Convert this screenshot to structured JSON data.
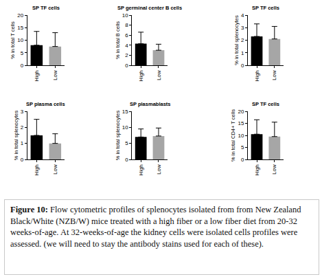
{
  "chart_data": [
    {
      "type": "bar",
      "title": "SP TF cells",
      "y_label": "% in total T cells",
      "categories": [
        "High",
        "Low"
      ],
      "values": [
        8,
        7.5
      ],
      "errors": [
        5.5,
        5.5
      ],
      "colors": [
        "#000000",
        "#a6a6a6"
      ],
      "ylim": [
        0,
        20
      ],
      "yticks": [
        0,
        5,
        10,
        15,
        20
      ]
    },
    {
      "type": "bar",
      "title": "SP germinal center B cells",
      "y_label": "% in total B cells",
      "categories": [
        "High",
        "Low"
      ],
      "values": [
        4.3,
        3
      ],
      "errors": [
        2.3,
        1.2
      ],
      "colors": [
        "#000000",
        "#a6a6a6"
      ],
      "ylim": [
        0,
        10
      ],
      "yticks": [
        0,
        2,
        4,
        6,
        8,
        10
      ]
    },
    {
      "type": "bar",
      "title": "SP TF cells",
      "y_label": "% in total splenocytes",
      "categories": [
        "High",
        "Low"
      ],
      "values": [
        2.3,
        2.1
      ],
      "errors": [
        1.0,
        1.0
      ],
      "colors": [
        "#000000",
        "#a6a6a6"
      ],
      "ylim": [
        0,
        4
      ],
      "yticks": [
        0,
        1,
        2,
        3,
        4
      ]
    },
    {
      "type": "bar",
      "title": "SP plasma cells",
      "y_label": "% in total splenocytes",
      "categories": [
        "High",
        "Low"
      ],
      "values": [
        1.5,
        1.0
      ],
      "errors": [
        1.0,
        0.6
      ],
      "colors": [
        "#000000",
        "#a6a6a6"
      ],
      "ylim": [
        0,
        3
      ],
      "yticks": [
        0,
        1,
        2,
        3
      ]
    },
    {
      "type": "bar",
      "title": "SP plasmablasts",
      "y_label": "% in total splenocytes",
      "categories": [
        "High",
        "Low"
      ],
      "values": [
        7,
        7.3
      ],
      "errors": [
        2.5,
        2.5
      ],
      "colors": [
        "#000000",
        "#a6a6a6"
      ],
      "ylim": [
        0,
        15
      ],
      "yticks": [
        0,
        5,
        10,
        15
      ]
    },
    {
      "type": "bar",
      "title": "SP TF cells",
      "y_label": "% in total CD4+ T cells",
      "categories": [
        "High",
        "Low"
      ],
      "values": [
        10.5,
        9.5
      ],
      "errors": [
        6,
        6
      ],
      "colors": [
        "#000000",
        "#a6a6a6"
      ],
      "ylim": [
        0,
        20
      ],
      "yticks": [
        0,
        5,
        10,
        15,
        20
      ]
    }
  ],
  "caption": {
    "label": "Figure 10:",
    "text": "Flow cytometric profiles of splenocytes isolated from from New Zealand Black/White (NZB/W) mice treated with a high fiber or a low fiber diet from 20-32 weeks-of-age. At 32-weeks-of-age the kidney cells were isolated cells profiles were assessed. (we will need to stay the antibody stains used for each of these)."
  }
}
